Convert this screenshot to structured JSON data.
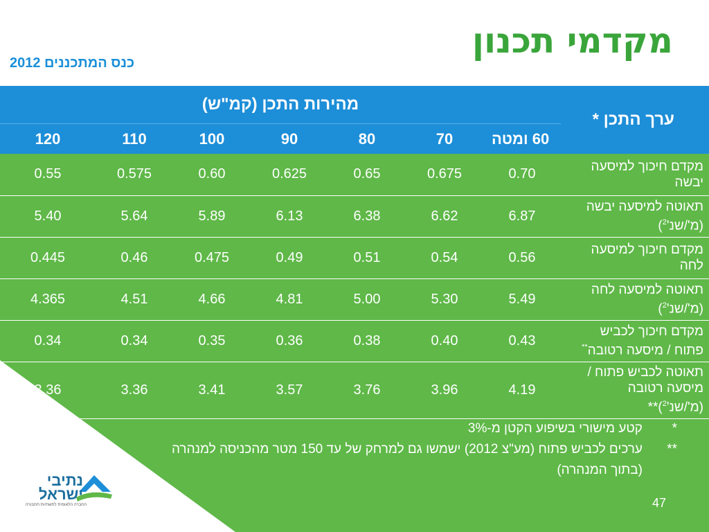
{
  "title": "מקדמי תכנון",
  "subtitle": "כנס המתכננים 2012",
  "table": {
    "corner_label": "ערך התכן",
    "corner_star": "*",
    "speed_header": "מהירות התכן (קמ\"ש)",
    "speeds": [
      "60 ומטה",
      "70",
      "80",
      "90",
      "100",
      "110",
      "120"
    ],
    "rows": [
      {
        "l1": "מקדם חיכוך למיסעה",
        "l2": "יבשה",
        "sup": "",
        "suffix": "",
        "values": [
          "0.70",
          "0.675",
          "0.65",
          "0.625",
          "0.60",
          "0.575",
          "0.55"
        ]
      },
      {
        "l1": "תאוטה למיסעה יבשה",
        "l2": "(מ'/שנ'",
        "sup": "2",
        "suffix": ")",
        "values": [
          "6.87",
          "6.62",
          "6.38",
          "6.13",
          "5.89",
          "5.64",
          "5.40"
        ]
      },
      {
        "l1": "מקדם חיכוך למיסעה",
        "l2": "לחה",
        "sup": "",
        "suffix": "",
        "values": [
          "0.56",
          "0.54",
          "0.51",
          "0.49",
          "0.475",
          "0.46",
          "0.445"
        ]
      },
      {
        "l1": "תאוטה למיסעה לחה",
        "l2": "(מ'/שנ'",
        "sup": "2",
        "suffix": ")",
        "values": [
          "5.49",
          "5.30",
          "5.00",
          "4.81",
          "4.66",
          "4.51",
          "4.365"
        ]
      },
      {
        "l1": "מקדם חיכוך לכביש",
        "l2": "פתוח / מיסעה רטובה",
        "sup": "**",
        "suffix": "",
        "values": [
          "0.43",
          "0.40",
          "0.38",
          "0.36",
          "0.35",
          "0.34",
          "0.34"
        ]
      },
      {
        "l1": "תאוטה לכביש פתוח /",
        "l2": "מיסעה רטובה",
        "l3": "(מ'/שנ'",
        "sup": "2",
        "suffix": ")**",
        "values": [
          "4.19",
          "3.96",
          "3.76",
          "3.57",
          "3.41",
          "3.36",
          "3.36"
        ]
      }
    ]
  },
  "notes": [
    {
      "mark": "*",
      "text": "קטע מישורי בשיפוע הקטן מ-3%"
    },
    {
      "mark": "**",
      "text": "ערכים לכביש פתוח (מע\"צ 2012) ישמשו גם למרחק של עד 150 מטר מהכניסה למנהרה (בתוך המנהרה)"
    }
  ],
  "logo": {
    "name": "נתיבי ישראל",
    "tagline": "החברה הלאומית לתשתיות תחבורה"
  },
  "page_number": "47",
  "colors": {
    "green": "#5fb848",
    "blue": "#1d8ed8",
    "title_green": "#3aa53a",
    "subtitle_blue": "#1a8fd8"
  }
}
